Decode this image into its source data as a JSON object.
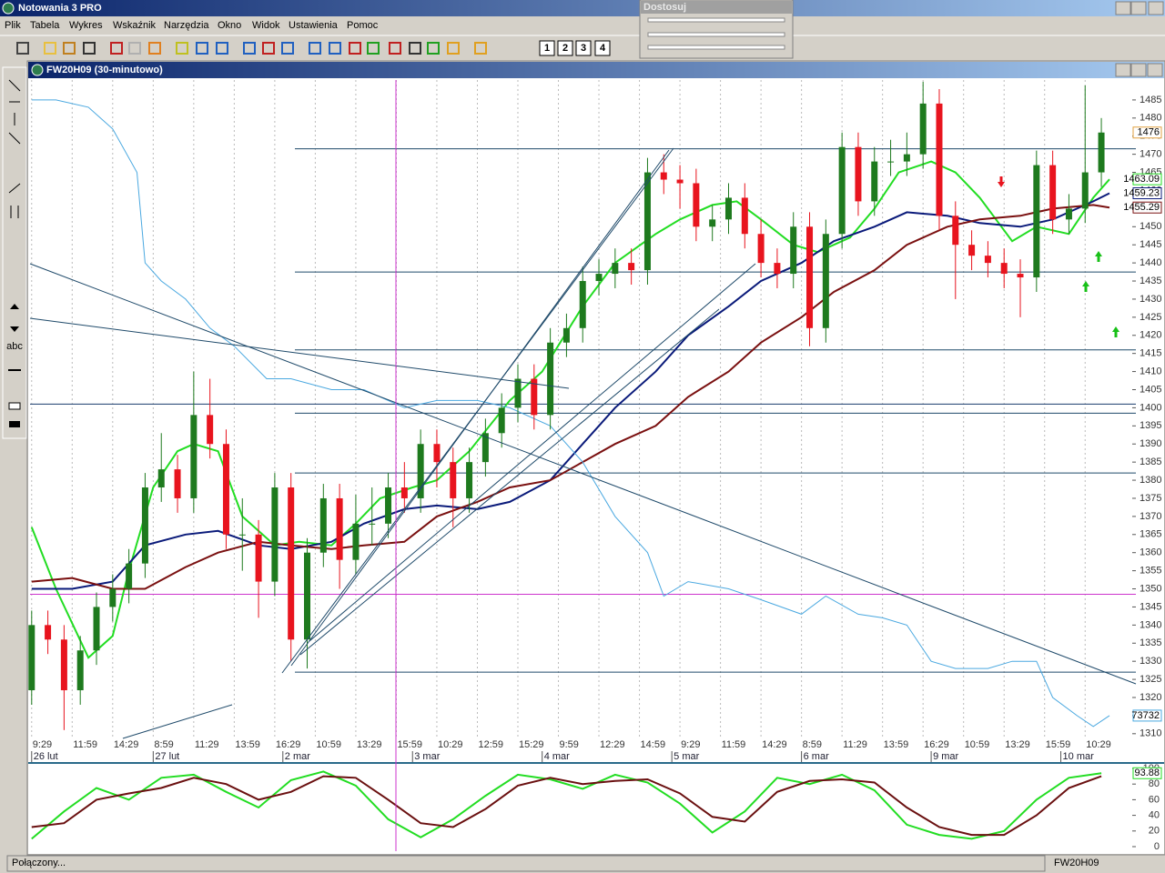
{
  "window": {
    "title": "Notowania 3 PRO"
  },
  "menu": [
    "Plik",
    "Tabela",
    "Wykres",
    "Wskaźnik",
    "Narzędzia",
    "Okno",
    "Widok",
    "Ustawienia",
    "Pomoc"
  ],
  "toolbar": {
    "pages": [
      "1",
      "2",
      "3",
      "4"
    ]
  },
  "left_toolbar": {
    "text": "abc"
  },
  "adjust_panel": {
    "title": "Dostosuj"
  },
  "chart_window": {
    "title": "FW20H09 (30-minutowo)"
  },
  "status_bar": {
    "left": "Połączony...",
    "right": "FW20H09"
  },
  "chart_data": [
    {
      "type": "candlestick",
      "x": [
        0,
        2,
        4,
        6,
        8,
        10,
        12,
        14,
        16,
        18,
        20,
        22,
        24,
        26,
        28,
        30,
        32,
        34,
        36,
        38,
        40,
        42,
        44,
        46,
        48,
        50,
        52,
        54,
        56,
        58,
        60,
        62,
        64,
        66,
        68,
        70,
        72,
        74,
        76,
        78,
        80,
        82,
        84,
        86,
        88,
        90,
        92,
        94,
        96,
        98,
        100,
        102,
        104,
        106,
        108,
        110,
        112,
        114,
        116,
        118,
        120,
        122,
        124,
        126,
        128,
        130,
        132
      ],
      "open": [
        1322,
        1340,
        1336,
        1322,
        1333,
        1345,
        1350,
        1357,
        1378,
        1383,
        1375,
        1398,
        1390,
        1365,
        1365,
        1352,
        1378,
        1336,
        1360,
        1375,
        1358,
        1368,
        1368,
        1378,
        1375,
        1390,
        1385,
        1375,
        1385,
        1393,
        1400,
        1408,
        1398,
        1418,
        1422,
        1435,
        1437,
        1440,
        1438,
        1465,
        1463,
        1462,
        1450,
        1452,
        1458,
        1448,
        1440,
        1437,
        1450,
        1422,
        1448,
        1472,
        1457,
        1468,
        1468,
        1470,
        1484,
        1453,
        1445,
        1442,
        1440,
        1437,
        1436,
        1467,
        1452,
        1455,
        1465
      ],
      "high": [
        1344,
        1344,
        1340,
        1337,
        1349,
        1354,
        1361,
        1382,
        1393,
        1387,
        1410,
        1408,
        1394,
        1375,
        1369,
        1382,
        1382,
        1364,
        1379,
        1379,
        1376,
        1378,
        1382,
        1385,
        1394,
        1394,
        1389,
        1389,
        1397,
        1404,
        1412,
        1412,
        1422,
        1426,
        1439,
        1441,
        1444,
        1444,
        1469,
        1470,
        1467,
        1466,
        1456,
        1462,
        1462,
        1452,
        1444,
        1454,
        1454,
        1452,
        1476,
        1476,
        1472,
        1474,
        1476,
        1490,
        1488,
        1457,
        1449,
        1446,
        1444,
        1441,
        1471,
        1471,
        1459,
        1489,
        1480
      ],
      "low": [
        1318,
        1332,
        1311,
        1318,
        1329,
        1341,
        1346,
        1353,
        1374,
        1371,
        1371,
        1386,
        1361,
        1355,
        1342,
        1348,
        1330,
        1328,
        1356,
        1350,
        1354,
        1362,
        1364,
        1371,
        1371,
        1378,
        1367,
        1371,
        1381,
        1389,
        1396,
        1394,
        1394,
        1414,
        1418,
        1431,
        1433,
        1434,
        1434,
        1459,
        1455,
        1446,
        1446,
        1448,
        1444,
        1436,
        1433,
        1433,
        1417,
        1418,
        1444,
        1453,
        1453,
        1464,
        1464,
        1466,
        1449,
        1430,
        1438,
        1436,
        1433,
        1425,
        1432,
        1448,
        1448,
        1451,
        1461
      ],
      "close": [
        1340,
        1336,
        1322,
        1333,
        1345,
        1350,
        1357,
        1378,
        1383,
        1375,
        1398,
        1390,
        1365,
        1365,
        1352,
        1378,
        1336,
        1360,
        1375,
        1358,
        1368,
        1368,
        1378,
        1375,
        1390,
        1385,
        1375,
        1385,
        1393,
        1400,
        1408,
        1398,
        1418,
        1422,
        1435,
        1437,
        1440,
        1438,
        1465,
        1463,
        1462,
        1450,
        1452,
        1458,
        1448,
        1440,
        1437,
        1450,
        1422,
        1448,
        1472,
        1457,
        1468,
        1468,
        1470,
        1484,
        1453,
        1445,
        1442,
        1440,
        1437,
        1436,
        1467,
        1452,
        1455,
        1465,
        1476
      ],
      "up_color": "#1e7a1e",
      "down_color": "#e8141e",
      "close_tag_color": "#e0a040",
      "xlim": [
        -0.2,
        135.7
      ],
      "ylim": [
        1308.7,
        1490.5
      ],
      "xticks": [
        {
          "value": 0,
          "label": "9:29"
        },
        {
          "value": 5,
          "label": "11:59"
        },
        {
          "value": 10,
          "label": "14:29"
        },
        {
          "value": 15,
          "label": "8:59"
        },
        {
          "value": 20,
          "label": "11:29"
        },
        {
          "value": 25,
          "label": "13:59"
        },
        {
          "value": 30,
          "label": "16:29"
        },
        {
          "value": 35,
          "label": "10:59"
        },
        {
          "value": 40,
          "label": "13:29"
        },
        {
          "value": 45,
          "label": "15:59"
        },
        {
          "value": 50,
          "label": "10:29"
        },
        {
          "value": 55,
          "label": "12:59"
        },
        {
          "value": 60,
          "label": "15:29"
        },
        {
          "value": 65,
          "label": "9:59"
        },
        {
          "value": 70,
          "label": "12:29"
        },
        {
          "value": 75,
          "label": "14:59"
        },
        {
          "value": 80,
          "label": "9:29"
        },
        {
          "value": 85,
          "label": "11:59"
        },
        {
          "value": 90,
          "label": "14:29"
        },
        {
          "value": 95,
          "label": "8:59"
        },
        {
          "value": 100,
          "label": "11:29"
        },
        {
          "value": 105,
          "label": "13:59"
        },
        {
          "value": 110,
          "label": "16:29"
        },
        {
          "value": 115,
          "label": "10:59"
        },
        {
          "value": 120,
          "label": "13:29"
        },
        {
          "value": 125,
          "label": "15:59"
        },
        {
          "value": 130,
          "label": "10:29"
        }
      ],
      "date_ticks": [
        {
          "value": 0,
          "label": "26 lut"
        },
        {
          "value": 15,
          "label": "27 lut"
        },
        {
          "value": 31,
          "label": "2 mar"
        },
        {
          "value": 47,
          "label": "3 mar"
        },
        {
          "value": 63,
          "label": "4 mar"
        },
        {
          "value": 79,
          "label": "5 mar"
        },
        {
          "value": 95,
          "label": "6 mar"
        },
        {
          "value": 111,
          "label": "9 mar"
        },
        {
          "value": 127,
          "label": "10 mar"
        }
      ],
      "yticks": [
        1310,
        1315,
        1320,
        1325,
        1330,
        1335,
        1340,
        1345,
        1350,
        1355,
        1360,
        1365,
        1370,
        1375,
        1380,
        1385,
        1390,
        1395,
        1400,
        1405,
        1410,
        1415,
        1420,
        1425,
        1430,
        1435,
        1440,
        1445,
        1450,
        1455,
        1460,
        1465,
        1470,
        1475,
        1480,
        1485
      ],
      "grid": true,
      "levels": [
        1471.5,
        1437.5,
        1416,
        1398.5,
        1382,
        1327
      ],
      "level_color": "#1f4a6a",
      "hlines": [
        {
          "value": 1401,
          "color": "#1a3c6e"
        },
        {
          "value": 1348.5,
          "color": "#cc33cc"
        }
      ],
      "series": [
        {
          "color": "#22dd22",
          "x": [
            0,
            3,
            7,
            10,
            12,
            15,
            18,
            20,
            23,
            26,
            30,
            33,
            37,
            40,
            43,
            47,
            50,
            54,
            59,
            63,
            68,
            72,
            77,
            80,
            84,
            87,
            90,
            94,
            97,
            101,
            104,
            107,
            111,
            114,
            117,
            121,
            124,
            128,
            131,
            133
          ],
          "values": [
            1367,
            1350,
            1331,
            1337,
            1355,
            1378,
            1388,
            1390,
            1388,
            1370,
            1362,
            1363,
            1362,
            1368,
            1375,
            1378,
            1380,
            1388,
            1402,
            1410,
            1428,
            1440,
            1448,
            1452,
            1456,
            1457,
            1452,
            1445,
            1443,
            1447,
            1455,
            1465,
            1468,
            1465,
            1458,
            1446,
            1450,
            1448,
            1458,
            1463.09
          ]
        },
        {
          "color": "#0a1a7a",
          "x": [
            0,
            5,
            10,
            14,
            19,
            23,
            28,
            32,
            37,
            41,
            46,
            50,
            55,
            59,
            64,
            68,
            72,
            77,
            81,
            86,
            90,
            95,
            99,
            104,
            108,
            113,
            117,
            122,
            126,
            131,
            133
          ],
          "values": [
            1350,
            1350,
            1352,
            1362,
            1365,
            1366,
            1362,
            1361,
            1363,
            1368,
            1372,
            1373,
            1372,
            1374,
            1380,
            1390,
            1400,
            1410,
            1420,
            1428,
            1435,
            1440,
            1446,
            1450,
            1454,
            1453,
            1451,
            1450,
            1452,
            1457,
            1459.23
          ]
        },
        {
          "color": "#7a1010",
          "x": [
            0,
            5,
            10,
            14,
            19,
            23,
            28,
            32,
            37,
            41,
            46,
            50,
            55,
            59,
            64,
            68,
            72,
            77,
            81,
            86,
            90,
            95,
            99,
            104,
            108,
            113,
            117,
            122,
            126,
            131,
            133
          ],
          "values": [
            1352,
            1353,
            1350,
            1350,
            1356,
            1360,
            1363,
            1362,
            1361,
            1362,
            1363,
            1370,
            1374,
            1378,
            1380,
            1385,
            1390,
            1395,
            1403,
            1410,
            1418,
            1425,
            1432,
            1438,
            1445,
            1450,
            1452,
            1453,
            1455,
            1456,
            1455.29
          ]
        },
        {
          "color": "#4aa8e0",
          "x": [
            0,
            3,
            7,
            10,
            13,
            14,
            16,
            19,
            22,
            25,
            29,
            32,
            37,
            41,
            46,
            50,
            55,
            59,
            64,
            68,
            72,
            76,
            78,
            81,
            86,
            90,
            95,
            98,
            102,
            105,
            108,
            111,
            114,
            118,
            121,
            124,
            126,
            129,
            131,
            133
          ],
          "values": [
            1485,
            1485,
            1483,
            1477,
            1465,
            1440,
            1435,
            1430,
            1422,
            1417,
            1408,
            1408,
            1405,
            1405,
            1400,
            1402,
            1402,
            1400,
            1395,
            1385,
            1370,
            1360,
            1348,
            1352,
            1350,
            1347,
            1343,
            1348,
            1343,
            1342,
            1340,
            1330,
            1328,
            1328,
            1330,
            1330,
            1320,
            1315,
            1312,
            1315
          ],
          "last_label": 73732
        }
      ]
    },
    {
      "type": "line",
      "x": [
        0,
        4,
        8,
        12,
        16,
        20,
        24,
        28,
        32,
        36,
        40,
        44,
        48,
        52,
        56,
        60,
        64,
        68,
        72,
        76,
        80,
        84,
        88,
        92,
        96,
        100,
        104,
        108,
        112,
        116,
        120,
        124,
        128,
        132
      ],
      "xlim": [
        -0.2,
        135.7
      ],
      "ylim": [
        0,
        100
      ],
      "yticks": [
        0,
        20,
        40,
        60,
        80,
        100
      ],
      "series": [
        {
          "color": "#22dd22",
          "values": [
            10,
            45,
            75,
            60,
            88,
            92,
            70,
            50,
            85,
            96,
            78,
            35,
            12,
            35,
            65,
            92,
            86,
            74,
            92,
            82,
            55,
            18,
            45,
            88,
            80,
            92,
            72,
            28,
            15,
            10,
            20,
            60,
            88,
            93.88
          ]
        },
        {
          "color": "#6a1010",
          "values": [
            25,
            30,
            60,
            68,
            75,
            88,
            80,
            60,
            70,
            90,
            88,
            60,
            30,
            25,
            48,
            78,
            88,
            80,
            84,
            86,
            68,
            38,
            32,
            70,
            84,
            86,
            82,
            50,
            25,
            15,
            15,
            40,
            75,
            90
          ]
        }
      ]
    }
  ]
}
